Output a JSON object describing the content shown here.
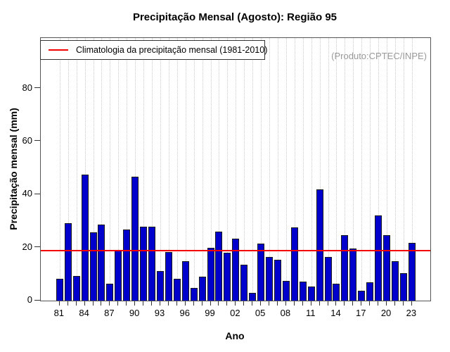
{
  "chart_data": {
    "type": "bar",
    "title": "Precipitação Mensal (Agosto): Região 95",
    "xlabel": "Ano",
    "ylabel": "Precipitação mensal (mm)",
    "annotation": "(Produto:CPTEC/INPE)",
    "legend": "Climatologia da precipitação mensal (1981-2010)",
    "legend_position": "top-left",
    "grid": "vertical-dotted",
    "years": [
      1981,
      1982,
      1983,
      1984,
      1985,
      1986,
      1987,
      1988,
      1989,
      1990,
      1991,
      1992,
      1993,
      1994,
      1995,
      1996,
      1997,
      1998,
      1999,
      2000,
      2001,
      2002,
      2003,
      2004,
      2005,
      2006,
      2007,
      2008,
      2009,
      2010,
      2011,
      2012,
      2013,
      2014,
      2015,
      2016,
      2017,
      2018,
      2019,
      2020,
      2021,
      2022,
      2023
    ],
    "values": [
      8.1,
      29.3,
      9.4,
      47.4,
      25.7,
      28.7,
      6.3,
      18.8,
      26.8,
      46.7,
      27.9,
      27.9,
      11.1,
      18.2,
      8.1,
      15.0,
      4.7,
      9.1,
      19.9,
      25.9,
      18.1,
      23.3,
      13.5,
      2.8,
      21.4,
      16.4,
      15.3,
      7.4,
      27.7,
      7.3,
      5.2,
      42.0,
      16.4,
      6.3,
      24.7,
      19.7,
      3.8,
      6.9,
      32.1,
      24.7,
      15.0,
      10.3,
      21.9
    ],
    "x_tick_labels": [
      "81",
      "84",
      "87",
      "90",
      "93",
      "96",
      "99",
      "02",
      "05",
      "08",
      "11",
      "14",
      "17",
      "20",
      "23"
    ],
    "x_tick_step": 3,
    "yticks": [
      0,
      20,
      40,
      60,
      80
    ],
    "ylim": [
      0,
      99
    ],
    "climatology": 18.9,
    "bar_color": "#0000CC",
    "bar_border_color": "#1A1A1A",
    "climatology_color": "#F20000",
    "annotation_color": "#999999"
  }
}
